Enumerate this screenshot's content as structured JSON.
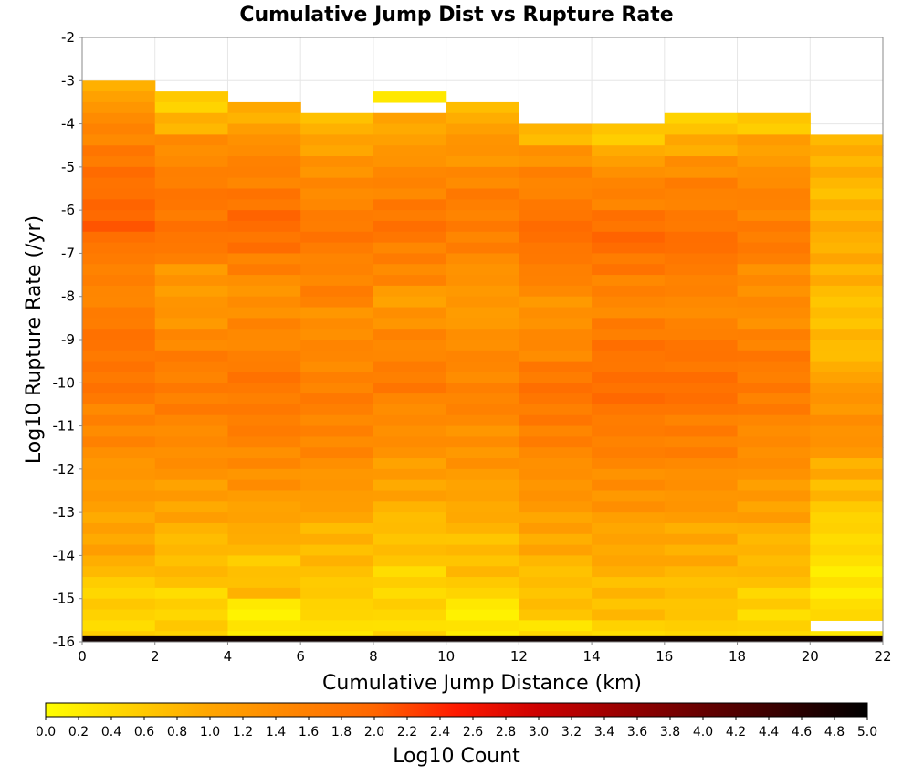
{
  "chart_data": {
    "type": "heatmap",
    "title": "Cumulative Jump Dist vs Rupture Rate",
    "xlabel": "Cumulative Jump Distance (km)",
    "ylabel": "Log10 Rupture Rate (/yr)",
    "xlim": [
      0,
      22
    ],
    "ylim": [
      -16,
      -2
    ],
    "xticks": [
      "0",
      "2",
      "4",
      "6",
      "8",
      "10",
      "12",
      "14",
      "16",
      "18",
      "20",
      "22"
    ],
    "yticks": [
      "-2",
      "-3",
      "-4",
      "-5",
      "-6",
      "-7",
      "-8",
      "-9",
      "-10",
      "-11",
      "-12",
      "-13",
      "-14",
      "-15",
      "-16"
    ],
    "grid": true,
    "x_bin_edges": [
      0,
      2,
      4,
      6,
      8,
      10,
      12,
      14,
      16,
      18,
      20,
      22
    ],
    "y_bin_size": 0.25,
    "colorbar": {
      "label": "Log10 Count",
      "min": 0.0,
      "max": 5.0,
      "ticks": [
        "0.0",
        "0.2",
        "0.4",
        "0.6",
        "0.8",
        "1.0",
        "1.2",
        "1.4",
        "1.6",
        "1.8",
        "2.0",
        "2.2",
        "2.4",
        "2.6",
        "2.8",
        "3.0",
        "3.2",
        "3.4",
        "3.6",
        "3.8",
        "4.0",
        "4.2",
        "4.4",
        "4.6",
        "4.8",
        "5.0"
      ],
      "colors": [
        "#ffff00",
        "#ffa500",
        "#ff6600",
        "#ff0000",
        "#990000",
        "#000000"
      ]
    },
    "columns": [
      {
        "x0": 0,
        "x1": 2,
        "top": -3.0,
        "base": [
          1.0,
          1.3,
          1.55,
          1.7,
          1.8,
          1.95,
          2.0,
          1.85,
          1.6,
          1.5,
          1.6,
          1.7,
          1.8,
          1.75,
          1.7,
          1.55,
          1.45,
          1.35,
          1.2,
          1.1,
          1.05,
          1.0,
          0.9,
          0.5
        ]
      },
      {
        "x0": 2,
        "x1": 4,
        "top": -3.25,
        "base": [
          0.6,
          0.85,
          1.35,
          1.55,
          1.65,
          1.75,
          1.8,
          1.6,
          1.25,
          1.15,
          1.3,
          1.45,
          1.6,
          1.65,
          1.6,
          1.5,
          1.4,
          1.3,
          1.15,
          1.0,
          0.85,
          0.75,
          0.7,
          0.5
        ]
      },
      {
        "x0": 4,
        "x1": 6,
        "top": -3.5,
        "base": [
          0.85,
          1.25,
          1.45,
          1.6,
          1.75,
          1.9,
          1.85,
          1.55,
          1.35,
          1.35,
          1.45,
          1.55,
          1.7,
          1.7,
          1.65,
          1.55,
          1.45,
          1.3,
          1.15,
          1.0,
          0.8,
          0.65,
          0.75,
          0.25
        ]
      },
      {
        "x0": 6,
        "x1": 8,
        "top": -3.75,
        "base": [
          0.75,
          1.1,
          1.3,
          1.4,
          1.6,
          1.7,
          1.65,
          1.5,
          1.55,
          1.35,
          1.4,
          1.5,
          1.55,
          1.6,
          1.55,
          1.45,
          1.35,
          1.2,
          1.0,
          0.85,
          0.75,
          0.7,
          0.55,
          0.35
        ]
      },
      {
        "x0": 8,
        "x1": 10,
        "top": -3.25,
        "base": [
          0.2,
          0.95,
          1.2,
          1.35,
          1.55,
          1.7,
          1.75,
          1.6,
          1.45,
          1.15,
          1.3,
          1.45,
          1.6,
          1.65,
          1.5,
          1.4,
          1.3,
          1.15,
          1.0,
          0.85,
          0.7,
          0.65,
          0.5,
          0.45
        ]
      },
      {
        "x0": 10,
        "x1": 12,
        "top": -3.5,
        "base": [
          0.85,
          1.15,
          1.3,
          1.45,
          1.6,
          1.65,
          1.55,
          1.4,
          1.25,
          1.15,
          1.3,
          1.4,
          1.5,
          1.55,
          1.45,
          1.35,
          1.25,
          1.15,
          1.0,
          0.85,
          0.75,
          0.7,
          0.6,
          0.2
        ]
      },
      {
        "x0": 12,
        "x1": 14,
        "top": -4.0,
        "base": [
          0.85,
          1.3,
          1.5,
          1.65,
          1.8,
          1.85,
          1.65,
          1.45,
          1.3,
          1.35,
          1.5,
          1.7,
          1.75,
          1.7,
          1.55,
          1.45,
          1.3,
          1.2,
          1.1,
          0.95,
          0.8,
          0.7,
          0.65,
          0.4
        ]
      },
      {
        "x0": 14,
        "x1": 16,
        "top": -4.0,
        "base": [
          0.55,
          1.05,
          1.4,
          1.6,
          1.8,
          1.9,
          1.75,
          1.5,
          1.5,
          1.65,
          1.75,
          1.85,
          1.85,
          1.75,
          1.6,
          1.5,
          1.4,
          1.25,
          1.1,
          1.0,
          0.9,
          0.8,
          0.7,
          0.5
        ]
      },
      {
        "x0": 16,
        "x1": 18,
        "top": -3.75,
        "base": [
          0.55,
          1.0,
          1.35,
          1.55,
          1.65,
          1.75,
          1.85,
          1.6,
          1.45,
          1.5,
          1.65,
          1.8,
          1.85,
          1.75,
          1.65,
          1.55,
          1.45,
          1.3,
          1.15,
          1.0,
          0.9,
          0.8,
          0.7,
          0.55
        ]
      },
      {
        "x0": 18,
        "x1": 20,
        "top": -3.75,
        "base": [
          0.6,
          1.05,
          1.3,
          1.45,
          1.55,
          1.65,
          1.6,
          1.4,
          1.35,
          1.4,
          1.55,
          1.65,
          1.7,
          1.6,
          1.5,
          1.4,
          1.3,
          1.2,
          1.05,
          0.9,
          0.8,
          0.7,
          0.55,
          0.4
        ]
      },
      {
        "x0": 20,
        "x1": 22,
        "top": -4.25,
        "base": [
          0.9,
          0.85,
          0.8,
          0.85,
          0.9,
          0.95,
          0.85,
          0.75,
          0.7,
          0.75,
          0.85,
          1.1,
          1.3,
          1.35,
          1.2,
          0.95,
          0.75,
          0.6,
          0.45,
          0.35,
          0.3,
          0.25,
          0.45,
          0.2
        ]
      }
    ],
    "empty_cells": [
      {
        "x0": 8,
        "x1": 10,
        "y0": -3.75,
        "y1": -3.5
      },
      {
        "x0": 20,
        "x1": 22,
        "y0": -15.75,
        "y1": -15.5
      }
    ],
    "bottom_row": {
      "y0": -16.0,
      "y1": -15.87,
      "value": 4.85
    }
  }
}
